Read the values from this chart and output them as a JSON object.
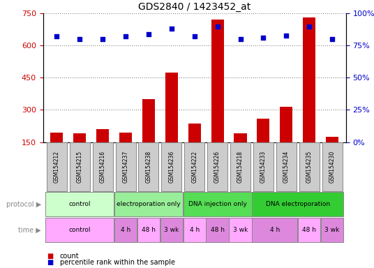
{
  "title": "GDS2840 / 1423452_at",
  "samples": [
    "GSM154212",
    "GSM154215",
    "GSM154216",
    "GSM154237",
    "GSM154238",
    "GSM154236",
    "GSM154222",
    "GSM154226",
    "GSM154218",
    "GSM154233",
    "GSM154234",
    "GSM154235",
    "GSM154230"
  ],
  "counts": [
    195,
    190,
    210,
    195,
    350,
    475,
    235,
    720,
    190,
    260,
    315,
    730,
    175
  ],
  "percentile_ranks": [
    82,
    80,
    80,
    82,
    84,
    88,
    82,
    90,
    80,
    81,
    83,
    90,
    80
  ],
  "ylim_left": [
    150,
    750
  ],
  "ylim_right": [
    0,
    100
  ],
  "yticks_left": [
    150,
    300,
    450,
    600,
    750
  ],
  "yticks_right": [
    0,
    25,
    50,
    75,
    100
  ],
  "bar_color": "#cc0000",
  "dot_color": "#0000cc",
  "protocol_groups": [
    {
      "label": "control",
      "start": 0,
      "end": 3,
      "color": "#ccffcc"
    },
    {
      "label": "electroporation only",
      "start": 3,
      "end": 6,
      "color": "#99ee99"
    },
    {
      "label": "DNA injection only",
      "start": 6,
      "end": 9,
      "color": "#55dd55"
    },
    {
      "label": "DNA electroporation",
      "start": 9,
      "end": 13,
      "color": "#33cc33"
    }
  ],
  "time_groups": [
    {
      "label": "control",
      "start": 0,
      "end": 3,
      "color": "#ffaaff"
    },
    {
      "label": "4 h",
      "start": 3,
      "end": 4,
      "color": "#dd88dd"
    },
    {
      "label": "48 h",
      "start": 4,
      "end": 5,
      "color": "#ffaaff"
    },
    {
      "label": "3 wk",
      "start": 5,
      "end": 6,
      "color": "#dd88dd"
    },
    {
      "label": "4 h",
      "start": 6,
      "end": 7,
      "color": "#ffaaff"
    },
    {
      "label": "48 h",
      "start": 7,
      "end": 8,
      "color": "#dd88dd"
    },
    {
      "label": "3 wk",
      "start": 8,
      "end": 9,
      "color": "#ffaaff"
    },
    {
      "label": "4 h",
      "start": 9,
      "end": 11,
      "color": "#dd88dd"
    },
    {
      "label": "48 h",
      "start": 11,
      "end": 12,
      "color": "#ffaaff"
    },
    {
      "label": "3 wk",
      "start": 12,
      "end": 13,
      "color": "#dd88dd"
    }
  ],
  "background_color": "#ffffff",
  "dotted_line_color": "#888888",
  "tick_color_left": "#cc0000",
  "tick_color_right": "#0000cc",
  "sample_box_color": "#cccccc",
  "sample_box_edge": "#888888",
  "protocol_edge": "#888888",
  "time_edge": "#888888"
}
